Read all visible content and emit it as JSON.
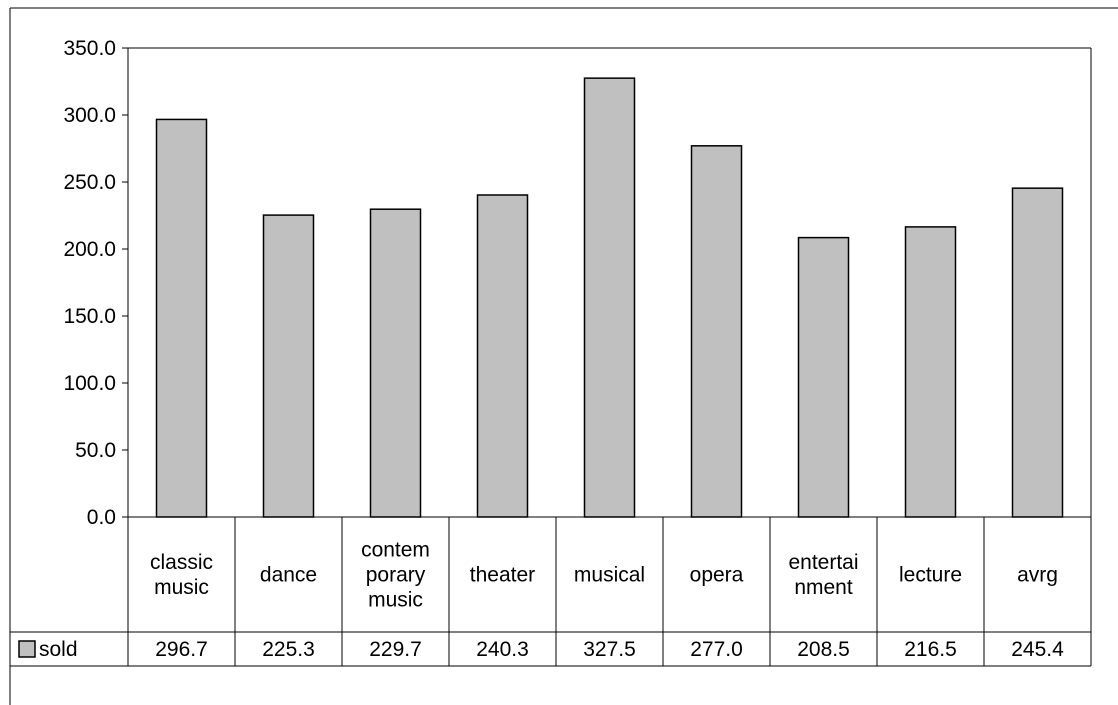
{
  "chart_data": {
    "type": "bar",
    "categories": [
      [
        "classic",
        "music"
      ],
      [
        "dance"
      ],
      [
        "contem",
        "porary",
        "music"
      ],
      [
        "theater"
      ],
      [
        "musical"
      ],
      [
        "opera"
      ],
      [
        "entertai",
        "nment"
      ],
      [
        "lecture"
      ],
      [
        "avrg"
      ]
    ],
    "series": [
      {
        "name": "sold",
        "values": [
          296.7,
          225.3,
          229.7,
          240.3,
          327.5,
          277.0,
          208.5,
          216.5,
          245.4
        ],
        "value_labels": [
          "296.7",
          "225.3",
          "229.7",
          "240.3",
          "327.5",
          "277.0",
          "208.5",
          "216.5",
          "245.4"
        ],
        "color": "#c0c0c0"
      }
    ],
    "ylim": [
      0,
      350
    ],
    "yticks": [
      "0.0",
      "50.0",
      "100.0",
      "150.0",
      "200.0",
      "250.0",
      "300.0",
      "350.0"
    ],
    "grid": false,
    "legend": "data-table-left",
    "border_color": "#000000"
  }
}
